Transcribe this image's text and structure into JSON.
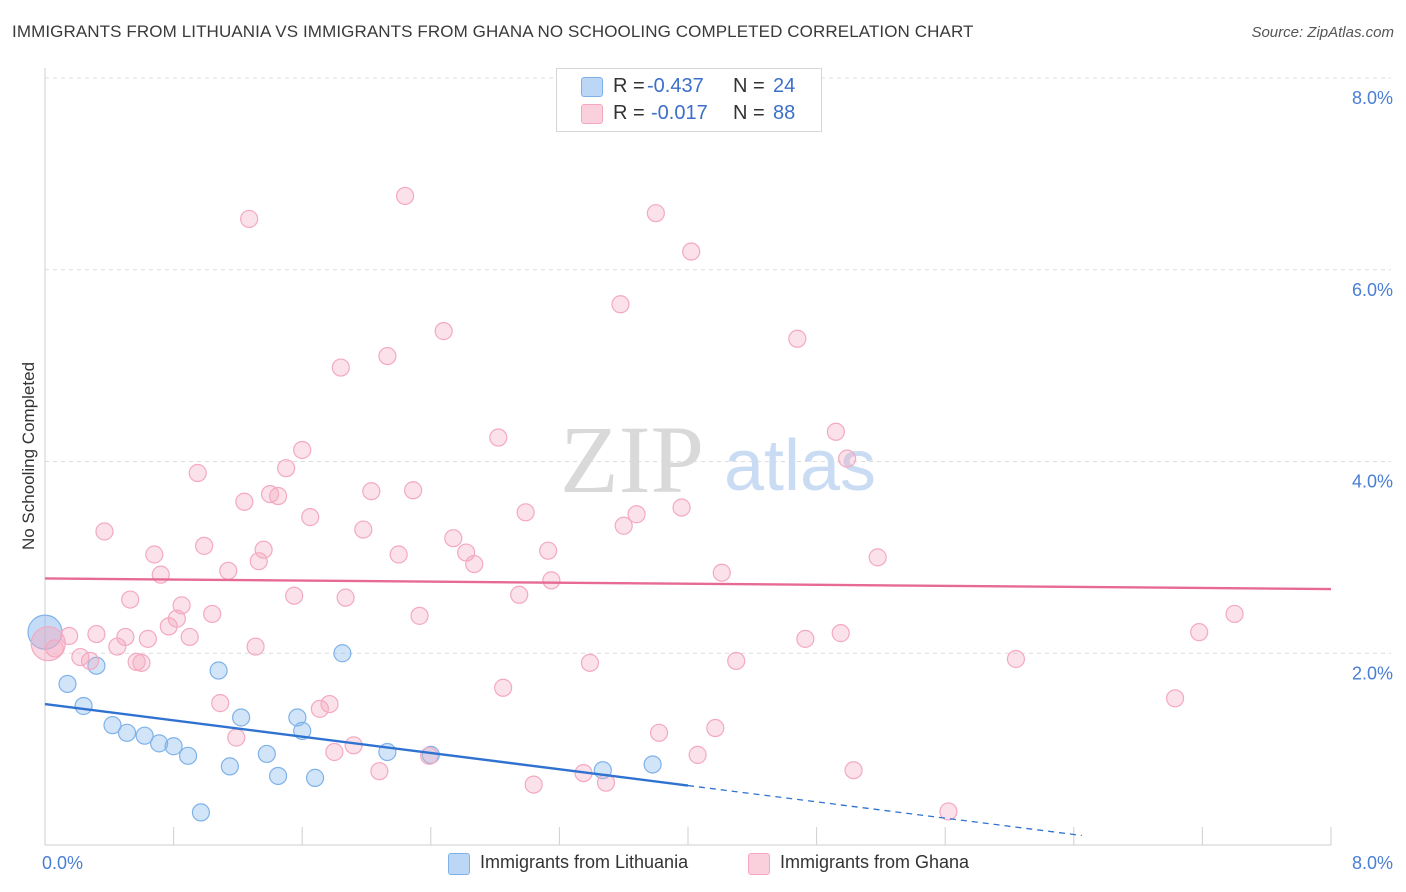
{
  "title": "IMMIGRANTS FROM LITHUANIA VS IMMIGRANTS FROM GHANA NO SCHOOLING COMPLETED CORRELATION CHART",
  "source": "Source: ZipAtlas.com",
  "watermark": {
    "zip": "ZIP",
    "atlas": "atlas"
  },
  "legend": {
    "lithuania": {
      "r_label": "R =",
      "r_value": "-0.437",
      "n_label": "N =",
      "n_value": "24"
    },
    "ghana": {
      "r_label": "R =",
      "r_value": "-0.017",
      "n_label": "N =",
      "n_value": "88"
    }
  },
  "bottom_legend": {
    "lithuania": "Immigrants from Lithuania",
    "ghana": "Immigrants from Ghana"
  },
  "chart_data": {
    "type": "scatter",
    "ylabel": "No Schooling Completed",
    "xlim": [
      0,
      8
    ],
    "ylim": [
      0,
      8
    ],
    "x_tick_labels": [
      "0.0%",
      "8.0%"
    ],
    "y_tick_labels": [
      {
        "value": 2,
        "label": "2.0%"
      },
      {
        "value": 4,
        "label": "4.0%"
      },
      {
        "value": 6,
        "label": "6.0%"
      },
      {
        "value": 8,
        "label": "8.0%"
      }
    ],
    "grid": true,
    "colors": {
      "lithuania": "#7fb2ea",
      "ghana": "#f4a9c0",
      "lithuania_line": "#2f72d0",
      "ghana_line": "#e66a95",
      "tick_text": "#4a7ed4"
    },
    "series": [
      {
        "name": "Immigrants from Lithuania",
        "key": "lithuania",
        "trend": {
          "x0": 0.0,
          "y0": 1.47,
          "x1": 4.0,
          "y1": 0.62,
          "dashed_to_x": 6.45
        },
        "points": [
          [
            0.0,
            2.22
          ],
          [
            0.14,
            1.68
          ],
          [
            0.24,
            1.45
          ],
          [
            0.32,
            1.87
          ],
          [
            0.42,
            1.25
          ],
          [
            0.51,
            1.17
          ],
          [
            0.62,
            1.14
          ],
          [
            0.71,
            1.06
          ],
          [
            0.8,
            1.03
          ],
          [
            0.89,
            0.93
          ],
          [
            0.97,
            0.34
          ],
          [
            1.08,
            1.82
          ],
          [
            1.15,
            0.82
          ],
          [
            1.22,
            1.33
          ],
          [
            1.38,
            0.95
          ],
          [
            1.45,
            0.72
          ],
          [
            1.57,
            1.33
          ],
          [
            1.6,
            1.19
          ],
          [
            1.68,
            0.7
          ],
          [
            1.85,
            2.0
          ],
          [
            2.13,
            0.97
          ],
          [
            2.4,
            0.94
          ],
          [
            3.47,
            0.78
          ],
          [
            3.78,
            0.84
          ]
        ]
      },
      {
        "name": "Immigrants from Ghana",
        "key": "ghana",
        "trend": {
          "x0": 0.0,
          "y0": 2.78,
          "x1": 8.0,
          "y1": 2.67
        },
        "points": [
          [
            0.02,
            2.1
          ],
          [
            0.15,
            2.18
          ],
          [
            0.22,
            1.96
          ],
          [
            0.28,
            1.92
          ],
          [
            0.32,
            2.2
          ],
          [
            0.37,
            3.27
          ],
          [
            0.45,
            2.07
          ],
          [
            0.5,
            2.17
          ],
          [
            0.53,
            2.56
          ],
          [
            0.57,
            1.91
          ],
          [
            0.6,
            1.9
          ],
          [
            0.64,
            2.15
          ],
          [
            0.68,
            3.03
          ],
          [
            0.72,
            2.82
          ],
          [
            0.77,
            2.28
          ],
          [
            0.82,
            2.36
          ],
          [
            0.85,
            2.5
          ],
          [
            0.9,
            2.17
          ],
          [
            0.95,
            3.88
          ],
          [
            0.99,
            3.12
          ],
          [
            1.04,
            2.41
          ],
          [
            1.09,
            1.48
          ],
          [
            1.14,
            2.86
          ],
          [
            1.19,
            1.12
          ],
          [
            1.24,
            3.58
          ],
          [
            1.27,
            6.53
          ],
          [
            1.31,
            2.07
          ],
          [
            1.36,
            3.08
          ],
          [
            1.4,
            3.66
          ],
          [
            1.45,
            3.64
          ],
          [
            1.5,
            3.93
          ],
          [
            1.55,
            2.6
          ],
          [
            1.6,
            4.12
          ],
          [
            1.65,
            3.42
          ],
          [
            1.71,
            1.42
          ],
          [
            1.77,
            1.47
          ],
          [
            1.8,
            0.97
          ],
          [
            1.84,
            4.98
          ],
          [
            1.87,
            2.58
          ],
          [
            1.92,
            1.04
          ],
          [
            1.98,
            3.29
          ],
          [
            2.03,
            3.69
          ],
          [
            2.08,
            0.77
          ],
          [
            2.13,
            5.1
          ],
          [
            2.2,
            3.03
          ],
          [
            2.24,
            6.77
          ],
          [
            2.29,
            3.7
          ],
          [
            2.33,
            2.39
          ],
          [
            2.39,
            0.93
          ],
          [
            2.48,
            5.36
          ],
          [
            2.54,
            3.2
          ],
          [
            2.62,
            3.05
          ],
          [
            2.67,
            2.93
          ],
          [
            2.82,
            4.25
          ],
          [
            2.85,
            1.64
          ],
          [
            2.95,
            2.61
          ],
          [
            2.99,
            3.47
          ],
          [
            3.04,
            0.63
          ],
          [
            3.13,
            3.07
          ],
          [
            3.15,
            2.76
          ],
          [
            3.35,
            0.75
          ],
          [
            3.39,
            1.9
          ],
          [
            3.49,
            0.65
          ],
          [
            3.58,
            5.64
          ],
          [
            3.6,
            3.33
          ],
          [
            3.68,
            3.45
          ],
          [
            3.8,
            6.59
          ],
          [
            3.82,
            1.17
          ],
          [
            3.96,
            3.52
          ],
          [
            4.02,
            6.19
          ],
          [
            4.06,
            0.94
          ],
          [
            4.17,
            1.22
          ],
          [
            4.21,
            2.84
          ],
          [
            4.3,
            1.92
          ],
          [
            4.68,
            5.28
          ],
          [
            4.73,
            2.15
          ],
          [
            4.92,
            4.31
          ],
          [
            4.95,
            2.21
          ],
          [
            4.99,
            4.03
          ],
          [
            5.03,
            0.78
          ],
          [
            5.18,
            3.0
          ],
          [
            5.62,
            0.35
          ],
          [
            6.04,
            1.94
          ],
          [
            7.03,
            1.53
          ],
          [
            7.18,
            2.22
          ],
          [
            7.4,
            2.41
          ],
          [
            0.06,
            2.05
          ],
          [
            1.33,
            2.96
          ]
        ]
      }
    ]
  }
}
